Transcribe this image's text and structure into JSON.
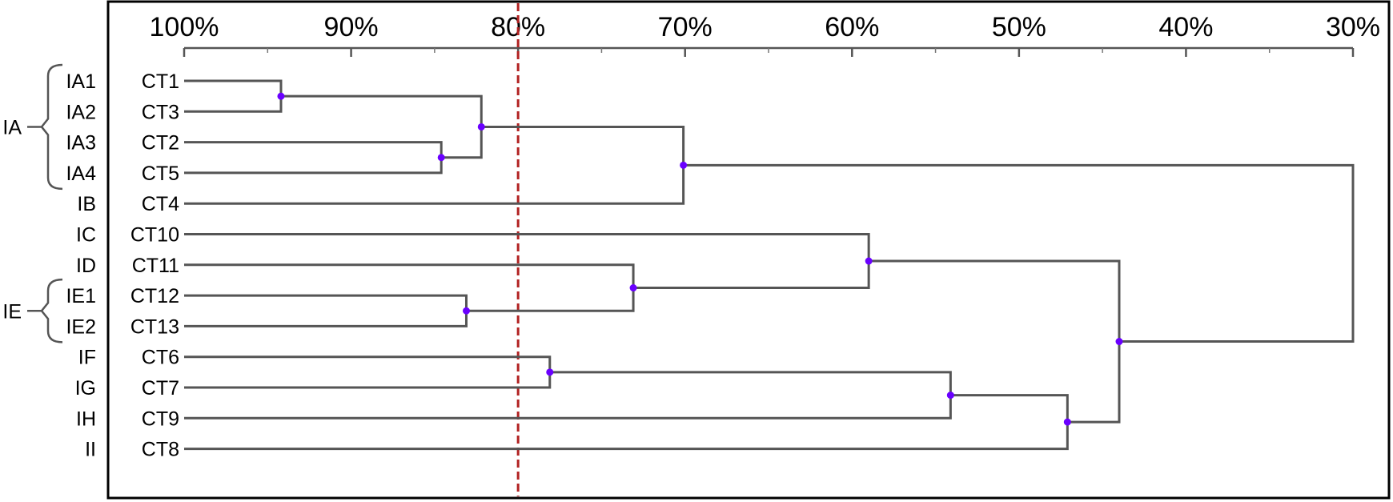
{
  "axis": {
    "ticks": [
      {
        "value": 100,
        "label": "100%"
      },
      {
        "value": 90,
        "label": "90%"
      },
      {
        "value": 80,
        "label": "80%"
      },
      {
        "value": 70,
        "label": "70%"
      },
      {
        "value": 60,
        "label": "60%"
      },
      {
        "value": 50,
        "label": "50%"
      },
      {
        "value": 40,
        "label": "40%"
      },
      {
        "value": 30,
        "label": "30%"
      }
    ],
    "domain": [
      100,
      30
    ],
    "minor_ticks": [
      95,
      85,
      75,
      65,
      55,
      45,
      35
    ]
  },
  "threshold": {
    "value": 80,
    "color": "#b22222"
  },
  "dendrogram": {
    "node_color": "#6a00ff",
    "leaves": [
      {
        "name": "CT1",
        "group": "IA1"
      },
      {
        "name": "CT3",
        "group": "IA2"
      },
      {
        "name": "CT2",
        "group": "IA3"
      },
      {
        "name": "CT5",
        "group": "IA4"
      },
      {
        "name": "CT4",
        "group": "IB"
      },
      {
        "name": "CT10",
        "group": "IC"
      },
      {
        "name": "CT11",
        "group": "ID"
      },
      {
        "name": "CT12",
        "group": "IE1"
      },
      {
        "name": "CT13",
        "group": "IE2"
      },
      {
        "name": "CT6",
        "group": "IF"
      },
      {
        "name": "CT7",
        "group": "IG"
      },
      {
        "name": "CT9",
        "group": "IH"
      },
      {
        "name": "CT8",
        "group": "II"
      }
    ],
    "merges": [
      {
        "id": "m1",
        "children": [
          "L0",
          "L1"
        ],
        "similarity": 94.2
      },
      {
        "id": "m2",
        "children": [
          "L2",
          "L3"
        ],
        "similarity": 84.6
      },
      {
        "id": "m3",
        "children": [
          "m1",
          "m2"
        ],
        "similarity": 82.2
      },
      {
        "id": "m4",
        "children": [
          "m3",
          "L4"
        ],
        "similarity": 70.1
      },
      {
        "id": "m5",
        "children": [
          "L7",
          "L8"
        ],
        "similarity": 83.1
      },
      {
        "id": "m6",
        "children": [
          "L6",
          "m5"
        ],
        "similarity": 73.1
      },
      {
        "id": "m7",
        "children": [
          "L5",
          "m6"
        ],
        "similarity": 59.0
      },
      {
        "id": "m8",
        "children": [
          "L9",
          "L10"
        ],
        "similarity": 78.1
      },
      {
        "id": "m9",
        "children": [
          "m8",
          "L11"
        ],
        "similarity": 54.1
      },
      {
        "id": "m10",
        "children": [
          "m9",
          "L12"
        ],
        "similarity": 47.1
      },
      {
        "id": "m11",
        "children": [
          "m7",
          "m10"
        ],
        "similarity": 44.0
      },
      {
        "id": "m12",
        "children": [
          "m4",
          "m11"
        ],
        "similarity": 30.0
      }
    ]
  },
  "groups": [
    {
      "label": "IA",
      "from": 0,
      "to": 3
    },
    {
      "label": "IE",
      "from": 7,
      "to": 8
    }
  ]
}
